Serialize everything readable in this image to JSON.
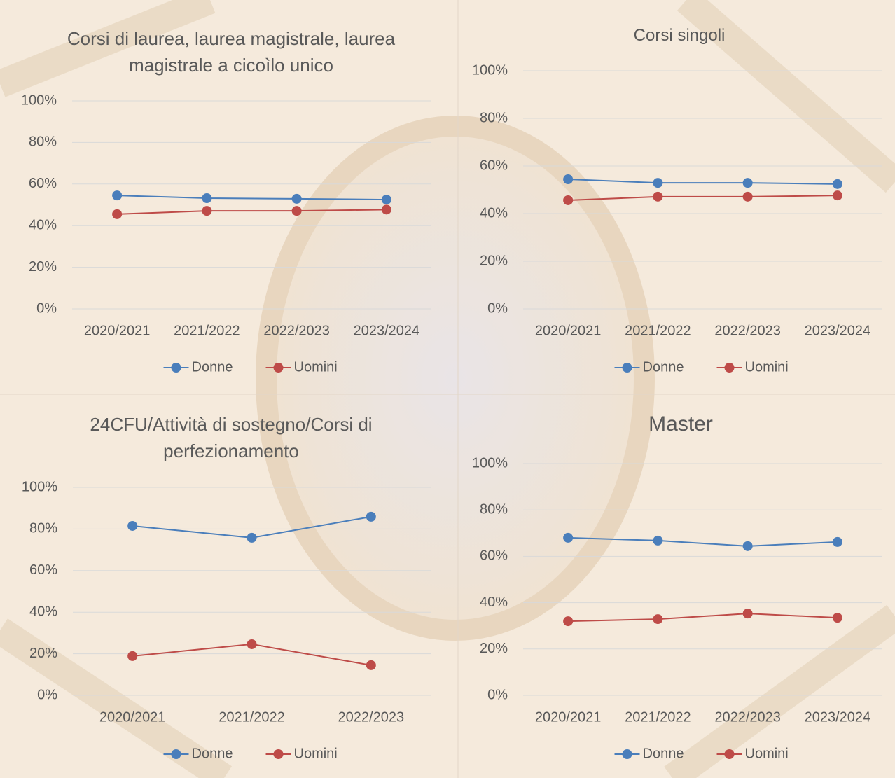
{
  "chart_data": [
    {
      "type": "line",
      "title": "Corsi di laurea, laurea magistrale, laurea magistrale a cicoìlo unico",
      "categories": [
        "2020/2021",
        "2021/2022",
        "2022/2023",
        "2023/2024"
      ],
      "series": [
        {
          "name": "Donne",
          "color": "#4a7ebb",
          "values": [
            54.5,
            53.2,
            52.9,
            52.5
          ]
        },
        {
          "name": "Uomini",
          "color": "#be4b48",
          "values": [
            45.5,
            47.1,
            47.1,
            47.7
          ]
        }
      ],
      "ylim": [
        0,
        100
      ],
      "yticks": [
        {
          "value": 0,
          "label": "0%"
        },
        {
          "value": 20,
          "label": "20%"
        },
        {
          "value": 40,
          "label": "40%"
        },
        {
          "value": 60,
          "label": "60%"
        },
        {
          "value": 80,
          "label": "80%"
        },
        {
          "value": 100,
          "label": "100%"
        }
      ],
      "grid": true,
      "legend": "bottom"
    },
    {
      "type": "line",
      "title": "Corsi singoli",
      "categories": [
        "2020/2021",
        "2021/2022",
        "2022/2023",
        "2023/2024"
      ],
      "series": [
        {
          "name": "Donne",
          "color": "#4a7ebb",
          "values": [
            54.4,
            52.9,
            52.9,
            52.4
          ]
        },
        {
          "name": "Uomini",
          "color": "#be4b48",
          "values": [
            45.6,
            47.1,
            47.1,
            47.6
          ]
        }
      ],
      "ylim": [
        0,
        100
      ],
      "yticks": [
        {
          "value": 0,
          "label": "0%"
        },
        {
          "value": 20,
          "label": "20%"
        },
        {
          "value": 40,
          "label": "40%"
        },
        {
          "value": 60,
          "label": "60%"
        },
        {
          "value": 80,
          "label": "80%"
        },
        {
          "value": 100,
          "label": "100%"
        }
      ],
      "grid": true,
      "legend": "bottom"
    },
    {
      "type": "line",
      "title": "24CFU/Attività di sostegno/Corsi di perfezionamento",
      "categories": [
        "2020/2021",
        "2021/2022",
        "2022/2023"
      ],
      "series": [
        {
          "name": "Donne",
          "color": "#4a7ebb",
          "values": [
            81.5,
            75.8,
            85.9
          ]
        },
        {
          "name": "Uomini",
          "color": "#be4b48",
          "values": [
            18.9,
            24.6,
            14.5
          ]
        }
      ],
      "ylim": [
        0,
        100
      ],
      "yticks": [
        {
          "value": 0,
          "label": "0%"
        },
        {
          "value": 20,
          "label": "20%"
        },
        {
          "value": 40,
          "label": "40%"
        },
        {
          "value": 60,
          "label": "60%"
        },
        {
          "value": 80,
          "label": "80%"
        },
        {
          "value": 100,
          "label": "100%"
        }
      ],
      "grid": true,
      "legend": "bottom"
    },
    {
      "type": "line",
      "title": "Master",
      "categories": [
        "2020/2021",
        "2021/2022",
        "2022/2023",
        "2023/2024"
      ],
      "series": [
        {
          "name": "Donne",
          "color": "#4a7ebb",
          "values": [
            68.0,
            66.8,
            64.4,
            66.2
          ]
        },
        {
          "name": "Uomini",
          "color": "#be4b48",
          "values": [
            32.0,
            32.9,
            35.3,
            33.5
          ]
        }
      ],
      "ylim": [
        0,
        100
      ],
      "yticks": [
        {
          "value": 0,
          "label": "0%"
        },
        {
          "value": 20,
          "label": "20%"
        },
        {
          "value": 40,
          "label": "40%"
        },
        {
          "value": 60,
          "label": "60%"
        },
        {
          "value": 80,
          "label": "80%"
        },
        {
          "value": 100,
          "label": "100%"
        }
      ],
      "grid": true,
      "legend": "bottom"
    }
  ]
}
